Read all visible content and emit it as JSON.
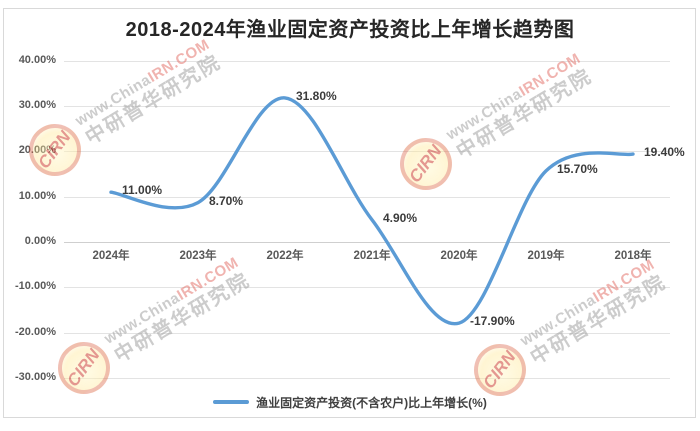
{
  "title": "2018-2024年渔业固定资产投资比上年增长趋势图",
  "legend": {
    "label": "渔业固定资产投资(不含农户)比上年增长(%)"
  },
  "watermark": {
    "logo_text": "CIRN",
    "line1_gray": "www.China",
    "line1_red": "IRN.COM",
    "line2": "中研普华研究院"
  },
  "chart_data": {
    "type": "line",
    "title": "2018-2024年渔业固定资产投资比上年增长趋势图",
    "categories": [
      "2024年",
      "2023年",
      "2022年",
      "2021年",
      "2020年",
      "2019年",
      "2018年"
    ],
    "series": [
      {
        "name": "渔业固定资产投资(不含农户)比上年增长(%)",
        "values": [
          11.0,
          8.7,
          31.8,
          4.9,
          -17.9,
          15.7,
          19.4
        ]
      }
    ],
    "data_labels": [
      "11.00%",
      "8.70%",
      "31.80%",
      "4.90%",
      "-17.90%",
      "15.70%",
      "19.40%"
    ],
    "y_ticks": [
      "40.00%",
      "30.00%",
      "20.00%",
      "10.00%",
      "0.00%",
      "-10.00%",
      "-20.00%",
      "-30.00%"
    ],
    "ylim": [
      -30,
      40
    ],
    "xlabel": "",
    "ylabel": "",
    "grid": true,
    "legend_position": "bottom",
    "line_color": "#5B9BD5",
    "smooth": true
  }
}
